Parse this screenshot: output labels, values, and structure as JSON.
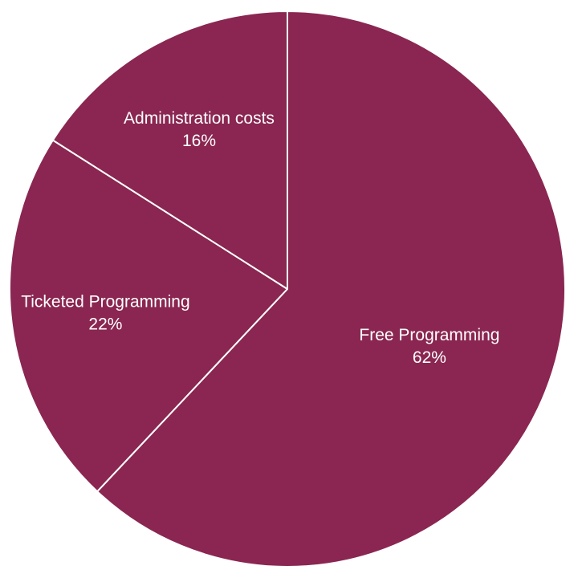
{
  "chart_data": {
    "type": "pie",
    "slices": [
      {
        "label": "Free Programming",
        "value": 62,
        "percent_label": "62%"
      },
      {
        "label": "Ticketed Programming",
        "value": 22,
        "percent_label": "22%"
      },
      {
        "label": "Administration costs",
        "value": 16,
        "percent_label": "16%"
      }
    ],
    "start_angle_deg": 0,
    "direction": "clockwise",
    "legend": "none",
    "colors": {
      "slice_fill": "#8a2651",
      "slice_border": "#ffffff",
      "label_text": "#ffffff",
      "background": "#ffffff"
    }
  }
}
